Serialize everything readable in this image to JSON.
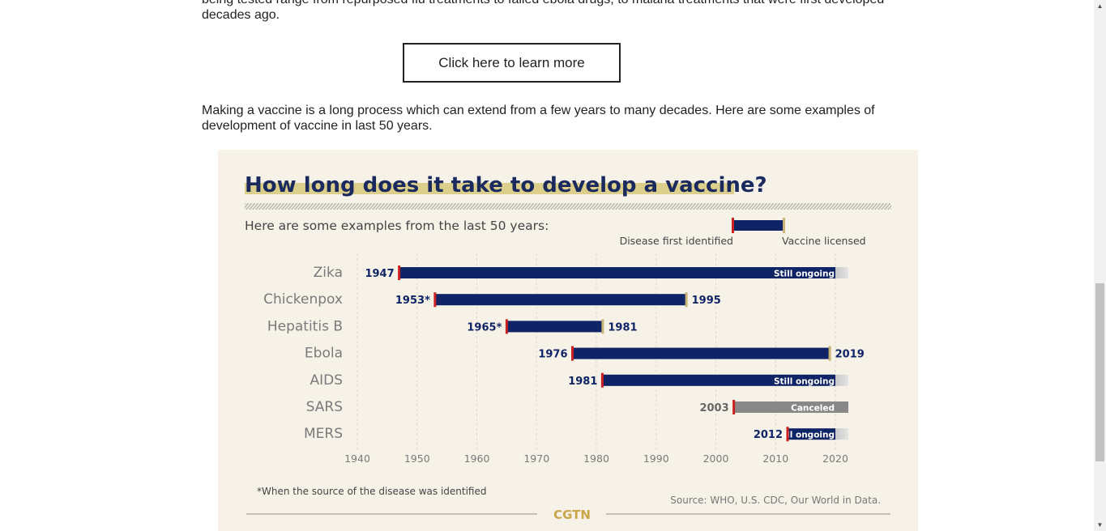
{
  "article": {
    "paragraph_top": "being tested range from repurposed flu treatments to failed ebola drugs, to malaria treatments that were first developed decades ago.",
    "cta_label": "Click here to learn more",
    "paragraph_mid": "Making a vaccine is a long process which can extend from a few years to many decades. Here are some examples of development of vaccine in last 50 years."
  },
  "infographic": {
    "title": "How long does it take to develop a vaccine?",
    "subtitle": "Here are some examples from the last 50 years:",
    "legend_start": "Disease first identified",
    "legend_end": "Vaccine licensed",
    "footnote": "*When the source of the disease was identified",
    "source": "Source: WHO, U.S. CDC, Our World in Data.",
    "brand": "CGTN"
  },
  "colors": {
    "bar": "#0f2466",
    "canceled": "#888888",
    "start_marker": "#cc2020",
    "end_marker": "#c8b478",
    "background": "#f6f2e8",
    "label": "#7a7a7a"
  },
  "chart_data": {
    "type": "bar",
    "orientation": "horizontal-range",
    "title": "How long does it take to develop a vaccine?",
    "xlim": [
      1940,
      2020
    ],
    "x_ticks": [
      "1940",
      "1950",
      "1960",
      "1970",
      "1980",
      "1990",
      "2000",
      "2010",
      "2020"
    ],
    "grid": true,
    "series": [
      {
        "name": "Zika",
        "start": 1947,
        "start_label": "1947",
        "end": null,
        "end_label": "",
        "status": "Still ongoing"
      },
      {
        "name": "Chickenpox",
        "start": 1953,
        "start_label": "1953*",
        "end": 1995,
        "end_label": "1995",
        "status": ""
      },
      {
        "name": "Hepatitis B",
        "start": 1965,
        "start_label": "1965*",
        "end": 1981,
        "end_label": "1981",
        "status": ""
      },
      {
        "name": "Ebola",
        "start": 1976,
        "start_label": "1976",
        "end": 2019,
        "end_label": "2019",
        "status": ""
      },
      {
        "name": "AIDS",
        "start": 1981,
        "start_label": "1981",
        "end": null,
        "end_label": "",
        "status": "Still ongoing"
      },
      {
        "name": "SARS",
        "start": 2003,
        "start_label": "2003",
        "end": null,
        "end_label": "",
        "status": "Canceled"
      },
      {
        "name": "MERS",
        "start": 2012,
        "start_label": "2012",
        "end": null,
        "end_label": "",
        "status": "Still ongoing"
      }
    ]
  }
}
